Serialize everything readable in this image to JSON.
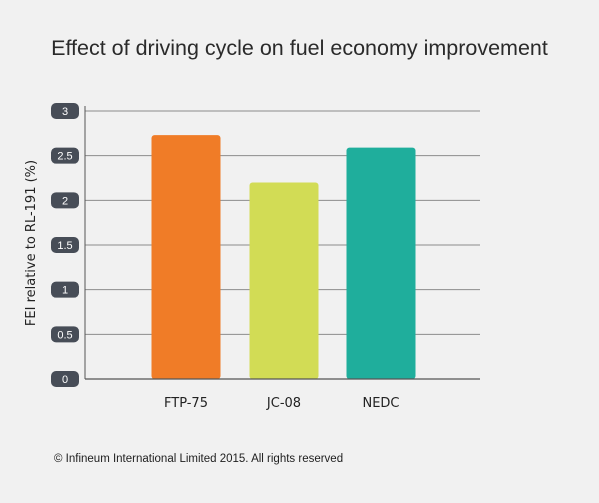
{
  "chart_data": {
    "type": "bar",
    "title": "Effect of driving cycle on fuel economy improvement",
    "xlabel": "",
    "ylabel": "FEI relative to RL-191 (%)",
    "categories": [
      "FTP-75",
      "JC-08",
      "NEDC"
    ],
    "values": [
      2.73,
      2.2,
      2.59
    ],
    "colors": [
      "#f07c27",
      "#d2dc55",
      "#1fae9c"
    ],
    "ylim": [
      0,
      3
    ],
    "yticks": [
      "0",
      "0.5",
      "1",
      "1.5",
      "2",
      "2.5",
      "3"
    ],
    "grid": true,
    "legend": "none"
  },
  "footer": {
    "copyright": "© Infineum International Limited 2015. All rights reserved"
  }
}
